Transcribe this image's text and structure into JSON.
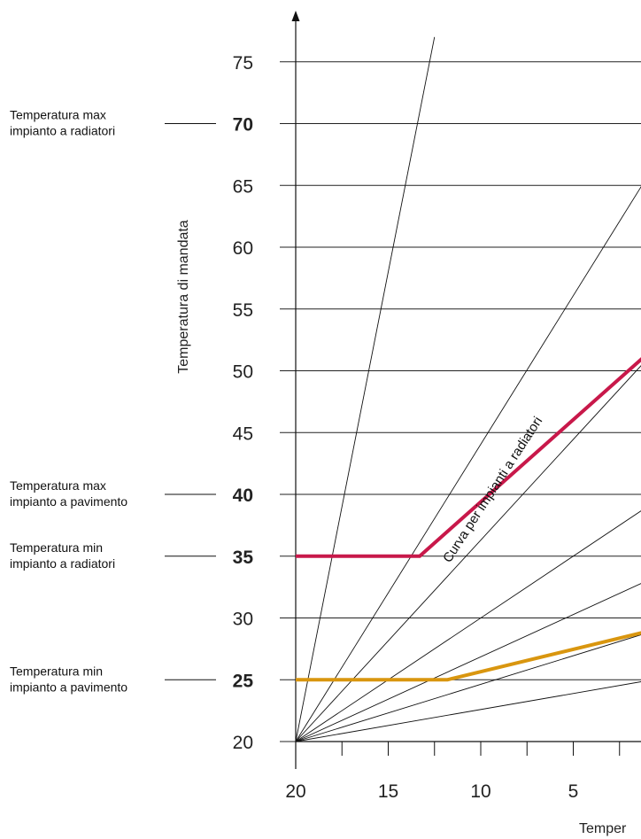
{
  "chart_data": {
    "type": "line",
    "ylabel": "Temperatura di mandata",
    "xlabel_partial": "Temper",
    "x_ticks": [
      20,
      15,
      10,
      5
    ],
    "y_ticks": [
      20,
      25,
      30,
      35,
      40,
      45,
      50,
      55,
      60,
      65,
      70,
      75
    ],
    "xlim": [
      20,
      -7.5
    ],
    "ylim": [
      20,
      77
    ],
    "grid": "horizontal",
    "highlighted_ticks": [
      {
        "value": 70,
        "color": "#c8184a"
      },
      {
        "value": 40,
        "color": "#e09a1a"
      },
      {
        "value": 35,
        "color": "#1aa3c8"
      },
      {
        "value": 25,
        "color": "#1aa3c8"
      }
    ],
    "annotations": [
      {
        "y": 70,
        "line1": "Temperatura max",
        "line2": "impianto a radiatori"
      },
      {
        "y": 40,
        "line1": "Temperatura max",
        "line2": "impianto a pavimento"
      },
      {
        "y": 35,
        "line1": "Temperatura min",
        "line2": "impianto a radiatori"
      },
      {
        "y": 25,
        "line1": "Temperatura min",
        "line2": "impianto a pavimento"
      }
    ],
    "fan_lines": [
      {
        "end": [
          12.5,
          77
        ]
      },
      {
        "end": [
          -3.7,
          77
        ]
      },
      {
        "end": [
          -7,
          64
        ]
      },
      {
        "end": [
          -7,
          47
        ]
      },
      {
        "end": [
          -7,
          38.5
        ]
      },
      {
        "end": [
          -7,
          32.5
        ]
      },
      {
        "end": [
          -7,
          27
        ]
      }
    ],
    "series": [
      {
        "label": "Curva per impianti a radiatori",
        "color": "#c8184a",
        "x": [
          20,
          13.3,
          -7
        ],
        "y": [
          35,
          35,
          62
        ]
      },
      {
        "color": "#d9960f",
        "x": [
          20,
          11.8,
          -7
        ],
        "y": [
          25,
          25,
          31.8
        ]
      }
    ]
  }
}
